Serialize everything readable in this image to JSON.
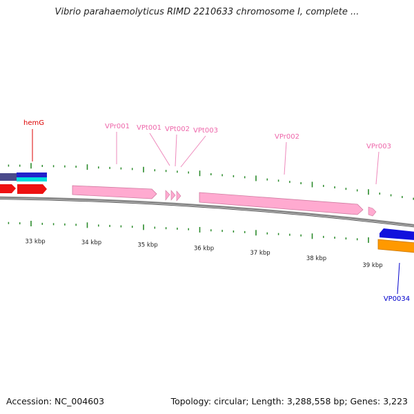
{
  "title": "Vibrio parahaemolyticus RIMD 2210633 chromosome I, complete ...",
  "footer": {
    "accession_label": "Accession:",
    "accession_value": "NC_004603",
    "topology_label": "Topology:",
    "topology_value": "circular",
    "length_label": "Length:",
    "length_value": "3,288,558 bp",
    "genes_label": "Genes:",
    "genes_value": "3,223"
  },
  "colors": {
    "backbone": "#888888",
    "tick": "#2a8a2a",
    "gene_forward": "#ee0000",
    "rna": "#ffaad0",
    "rna_label": "#ee66aa",
    "gene_reverse_blue": "#0000dd",
    "gene_reverse_orange": "#ff9900",
    "navy": "#333388",
    "cyan": "#00cccc"
  },
  "map": {
    "kbp_unit": "kbp",
    "scale_ticks_kbp": [
      33,
      34,
      35,
      36,
      37,
      38,
      39
    ],
    "gene_labels": [
      {
        "name": "hemG",
        "color": "#dd0000"
      },
      {
        "name": "VPr001",
        "color": "#ee66aa"
      },
      {
        "name": "VPt001",
        "color": "#ee66aa"
      },
      {
        "name": "VPt002",
        "color": "#ee66aa"
      },
      {
        "name": "VPt003",
        "color": "#ee66aa"
      },
      {
        "name": "VPr002",
        "color": "#ee66aa"
      },
      {
        "name": "VPr003",
        "color": "#ee66aa"
      },
      {
        "name": "VP0034",
        "color": "#0000cc"
      }
    ]
  }
}
